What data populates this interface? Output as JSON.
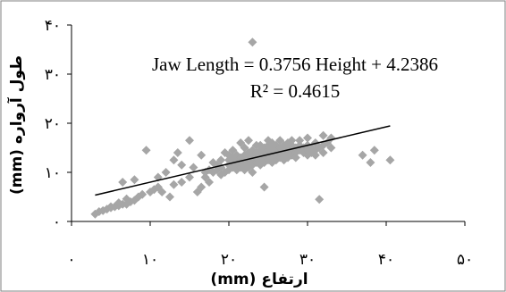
{
  "chart_data": {
    "type": "scatter",
    "xlabel": "ارتفاع (mm)",
    "ylabel": "طول آرواره (mm)",
    "xlim": [
      0,
      50
    ],
    "ylim": [
      0,
      40
    ],
    "x_ticks": [
      {
        "value": 0,
        "label": "۰"
      },
      {
        "value": 10,
        "label": "۱۰"
      },
      {
        "value": 20,
        "label": "۲۰"
      },
      {
        "value": 30,
        "label": "۳۰"
      },
      {
        "value": 40,
        "label": "۴۰"
      },
      {
        "value": 50,
        "label": "۵۰"
      }
    ],
    "y_ticks": [
      {
        "value": 0,
        "label": "۰"
      },
      {
        "value": 10,
        "label": "۱۰"
      },
      {
        "value": 20,
        "label": "۲۰"
      },
      {
        "value": 30,
        "label": "۳۰"
      },
      {
        "value": 40,
        "label": "۴۰"
      }
    ],
    "equation": "Jaw Length = 0.3756 Height + 4.2386",
    "r_squared": "R² = 0.4615",
    "trendline": {
      "slope": 0.3756,
      "intercept": 4.2386,
      "x_range": [
        3,
        40.5
      ]
    },
    "grid": false,
    "legend": "none",
    "marker_color": "#a6a6a6",
    "trendline_color": "#000000",
    "points": [
      [
        3,
        1.5
      ],
      [
        3.5,
        2
      ],
      [
        4,
        2.2
      ],
      [
        4.5,
        2.5
      ],
      [
        5,
        3
      ],
      [
        5.5,
        3
      ],
      [
        6,
        3.2
      ],
      [
        6.5,
        3.5
      ],
      [
        7,
        3.5
      ],
      [
        7.5,
        4
      ],
      [
        8,
        4.3
      ],
      [
        5,
        2.8
      ],
      [
        6,
        3.8
      ],
      [
        7,
        4.6
      ],
      [
        6.5,
        8
      ],
      [
        8,
        8.5
      ],
      [
        8.5,
        5
      ],
      [
        9,
        5.5
      ],
      [
        9.5,
        14.5
      ],
      [
        10,
        6
      ],
      [
        10.5,
        6.5
      ],
      [
        11,
        7
      ],
      [
        11.5,
        6
      ],
      [
        11,
        9
      ],
      [
        12,
        10
      ],
      [
        12.5,
        5
      ],
      [
        13,
        7.5
      ],
      [
        13,
        12.5
      ],
      [
        13.5,
        14
      ],
      [
        14,
        8
      ],
      [
        14,
        11.5
      ],
      [
        15,
        9
      ],
      [
        15,
        16.5
      ],
      [
        15.5,
        11
      ],
      [
        16,
        6
      ],
      [
        16.5,
        7
      ],
      [
        16.5,
        13.5
      ],
      [
        17,
        9
      ],
      [
        17,
        10
      ],
      [
        17.5,
        8
      ],
      [
        17.5,
        10.5
      ],
      [
        18,
        10
      ],
      [
        18,
        12
      ],
      [
        18.5,
        10.5
      ],
      [
        18.5,
        11.5
      ],
      [
        19,
        9.5
      ],
      [
        19,
        11
      ],
      [
        19,
        12.5
      ],
      [
        19.5,
        10
      ],
      [
        19.5,
        14
      ],
      [
        20,
        10.5
      ],
      [
        20,
        11.5
      ],
      [
        20,
        12.5
      ],
      [
        20,
        13.5
      ],
      [
        20.5,
        11
      ],
      [
        20.5,
        12
      ],
      [
        20.5,
        13
      ],
      [
        20.5,
        14.5
      ],
      [
        21,
        10.5
      ],
      [
        21,
        11.5
      ],
      [
        21,
        12.5
      ],
      [
        21,
        13.5
      ],
      [
        21.5,
        11
      ],
      [
        21.5,
        12
      ],
      [
        21.5,
        13
      ],
      [
        21.5,
        16
      ],
      [
        22,
        10.5
      ],
      [
        22,
        11.5
      ],
      [
        22,
        12.5
      ],
      [
        22,
        13.5
      ],
      [
        22,
        15
      ],
      [
        22.5,
        11
      ],
      [
        22.5,
        12
      ],
      [
        22.5,
        13
      ],
      [
        22.5,
        14
      ],
      [
        22.5,
        16.5
      ],
      [
        23,
        11.5
      ],
      [
        23,
        12.5
      ],
      [
        23,
        13.5
      ],
      [
        23,
        14.5
      ],
      [
        23,
        10
      ],
      [
        23,
        36.5
      ],
      [
        23.5,
        12
      ],
      [
        23.5,
        13
      ],
      [
        23.5,
        14
      ],
      [
        23.5,
        15.5
      ],
      [
        24,
        11.5
      ],
      [
        24,
        12.5
      ],
      [
        24,
        13.5
      ],
      [
        24,
        14.5
      ],
      [
        24,
        15.5
      ],
      [
        24.5,
        12
      ],
      [
        24.5,
        13
      ],
      [
        24.5,
        14
      ],
      [
        24.5,
        15
      ],
      [
        24.5,
        7
      ],
      [
        25,
        12.5
      ],
      [
        25,
        13.5
      ],
      [
        25,
        14.5
      ],
      [
        25,
        15.5
      ],
      [
        25,
        16.5
      ],
      [
        25.5,
        12
      ],
      [
        25.5,
        13
      ],
      [
        25.5,
        14
      ],
      [
        25.5,
        15
      ],
      [
        25.5,
        16
      ],
      [
        26,
        12.5
      ],
      [
        26,
        13.5
      ],
      [
        26,
        14.5
      ],
      [
        26,
        15.5
      ],
      [
        26.5,
        13
      ],
      [
        26.5,
        14
      ],
      [
        26.5,
        15
      ],
      [
        26.5,
        16.5
      ],
      [
        27,
        12.5
      ],
      [
        27,
        13.5
      ],
      [
        27,
        14.5
      ],
      [
        27,
        15.5
      ],
      [
        27.5,
        13
      ],
      [
        27.5,
        14
      ],
      [
        27.5,
        15
      ],
      [
        27.5,
        16
      ],
      [
        28,
        13.5
      ],
      [
        28,
        14.5
      ],
      [
        28,
        15.5
      ],
      [
        28,
        16.5
      ],
      [
        28.5,
        14
      ],
      [
        28.5,
        15
      ],
      [
        28.5,
        13
      ],
      [
        29,
        14.5
      ],
      [
        29,
        15.5
      ],
      [
        29,
        16.5
      ],
      [
        29.5,
        14
      ],
      [
        29.5,
        15
      ],
      [
        30,
        13.5
      ],
      [
        30,
        14.5
      ],
      [
        30,
        15.5
      ],
      [
        30,
        17
      ],
      [
        30.5,
        14
      ],
      [
        30.5,
        15
      ],
      [
        31,
        13.5
      ],
      [
        31,
        14.5
      ],
      [
        31,
        16
      ],
      [
        31.5,
        15
      ],
      [
        31.5,
        4.5
      ],
      [
        32,
        14
      ],
      [
        32,
        15.5
      ],
      [
        32,
        17.5
      ],
      [
        32.5,
        16
      ],
      [
        33,
        15
      ],
      [
        33,
        17
      ],
      [
        37,
        13.5
      ],
      [
        38,
        12
      ],
      [
        38.5,
        14.5
      ],
      [
        40.5,
        12.5
      ]
    ]
  }
}
